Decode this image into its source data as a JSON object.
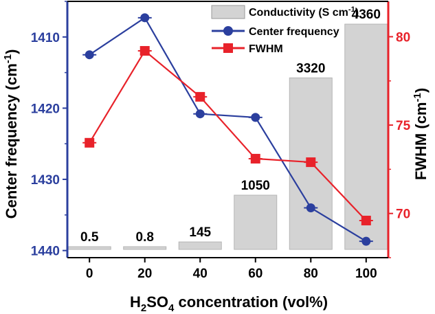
{
  "chart_data": {
    "type": "bar+line",
    "xlabel": "H2SO4 concentration (vol%)",
    "xlabel_parts": {
      "pre": "H",
      "sub1": "2",
      "mid": "SO",
      "sub2": "4",
      "post": " concentration (vol%)"
    },
    "ylabel_left": "Center frequency (cm-1)",
    "ylabel_left_parts": {
      "pre": "Center frequency (cm",
      "sup": "-1",
      "post": ")"
    },
    "ylabel_right": "FWHM (cm-1)",
    "ylabel_right_parts": {
      "pre": "FWHM (cm",
      "sup": "-1",
      "post": ")"
    },
    "x_ticks": [
      0,
      20,
      40,
      60,
      80,
      100
    ],
    "x_ticklabels": [
      "0",
      "20",
      "40",
      "60",
      "80",
      "100"
    ],
    "left_axis": {
      "min": 1405,
      "max": 1441,
      "inverted": true,
      "ticks": [
        1410,
        1420,
        1430,
        1440
      ],
      "ticklabels": [
        "1410",
        "1420",
        "1430",
        "1440"
      ],
      "color": "#2b3f9e"
    },
    "right_axis": {
      "min": 67.5,
      "max": 82,
      "ticks": [
        70,
        75,
        80
      ],
      "ticklabels": [
        "70",
        "75",
        "80"
      ],
      "color": "#e8222a"
    },
    "bars": {
      "name": "Conductivity (S cm-1)",
      "name_parts": {
        "pre": "Conductivity (S cm",
        "sup": "-1",
        "post": ")"
      },
      "x": [
        0,
        20,
        40,
        60,
        80,
        100
      ],
      "values": [
        0.5,
        0.8,
        145,
        1050,
        3320,
        4360
      ],
      "labels": [
        "0.5",
        "0.8",
        "145",
        "1050",
        "3320",
        "4360"
      ],
      "color": "#d3d3d3"
    },
    "series": [
      {
        "name": "Center frequency",
        "axis": "left",
        "color": "#2b3f9e",
        "marker": "circle",
        "x": [
          0,
          20,
          40,
          60,
          80,
          100
        ],
        "y": [
          1412.5,
          1407.3,
          1420.8,
          1421.3,
          1434.0,
          1438.7
        ]
      },
      {
        "name": "FWHM",
        "axis": "right",
        "color": "#e8222a",
        "marker": "square",
        "x": [
          0,
          20,
          40,
          60,
          80,
          100
        ],
        "y": [
          74.0,
          79.2,
          76.6,
          73.1,
          72.9,
          69.6
        ]
      }
    ],
    "legend_position": "top-right",
    "grid": false
  }
}
